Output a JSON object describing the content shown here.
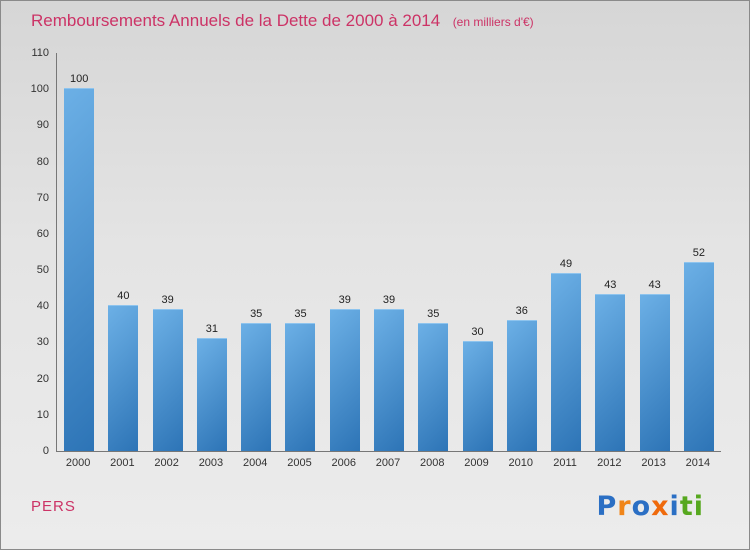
{
  "header": {
    "title": "Remboursements Annuels de la Dette de 2000 à 2014",
    "subtitle": "(en milliers d'€)"
  },
  "chart_data": {
    "type": "bar",
    "title": "Remboursements Annuels de la Dette de 2000 à 2014",
    "subtitle": "(en milliers d'€)",
    "categories": [
      "2000",
      "2001",
      "2002",
      "2003",
      "2004",
      "2005",
      "2006",
      "2007",
      "2008",
      "2009",
      "2010",
      "2011",
      "2012",
      "2013",
      "2014"
    ],
    "values": [
      100,
      40,
      39,
      31,
      35,
      35,
      39,
      39,
      35,
      30,
      36,
      49,
      43,
      43,
      52
    ],
    "xlabel": "",
    "ylabel": "",
    "ylim": [
      0,
      110
    ],
    "ytick_step": 10,
    "grid": false,
    "legend": "none",
    "bar_color_top": "#6cb0e6",
    "bar_color_bottom": "#2d74b6",
    "title_color": "#cc3366"
  },
  "footer": {
    "left_label": "PERS"
  },
  "logo": {
    "name": "Proxiti",
    "letters": [
      {
        "ch": "P",
        "color": "#2b6fc4"
      },
      {
        "ch": "r",
        "color": "#f08519"
      },
      {
        "ch": "o",
        "color": "#2b6fc4"
      },
      {
        "ch": "x",
        "color": "#ef6a0c"
      },
      {
        "ch": "i",
        "color": "#2b6fc4"
      },
      {
        "ch": "t",
        "color": "#57a81f"
      },
      {
        "ch": "i",
        "color": "#57a81f"
      }
    ]
  }
}
